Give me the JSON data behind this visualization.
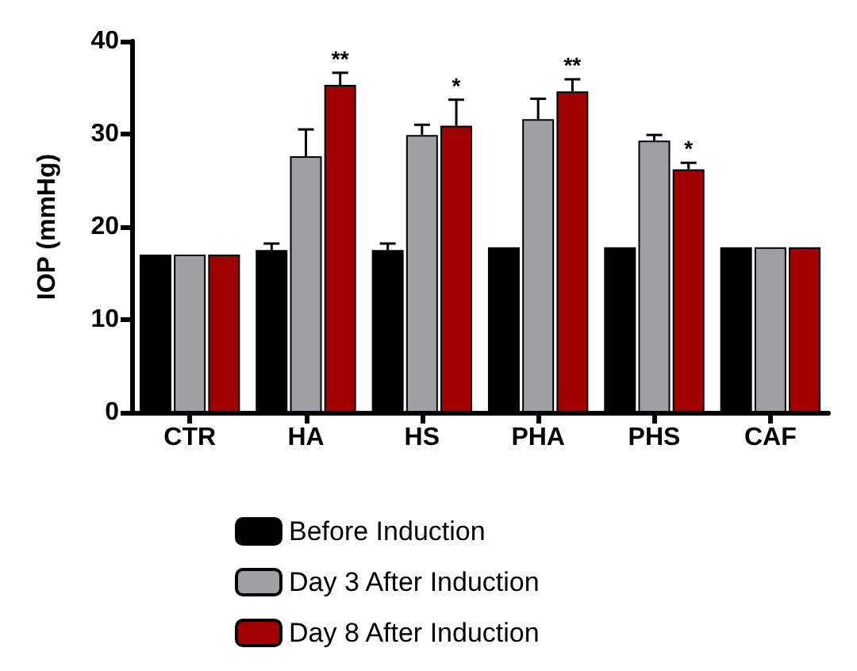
{
  "chart_data": {
    "type": "bar",
    "ylabel": "IOP (mmHg)",
    "categories": [
      "CTR",
      "HA",
      "HS",
      "PHA",
      "PHS",
      "CAF"
    ],
    "series": [
      {
        "name": "Before Induction",
        "color": "#000000",
        "values": [
          17,
          17.5,
          17.5,
          17.8,
          17.8,
          17.8
        ],
        "errors": [
          null,
          [
            17.5,
            18.2
          ],
          [
            17.5,
            18.2
          ],
          null,
          null,
          null
        ]
      },
      {
        "name": "Day 3 After Induction",
        "color": "#a0a0a4",
        "values": [
          17,
          27.6,
          29.9,
          31.6,
          29.3,
          17.8
        ],
        "errors": [
          null,
          [
            27.6,
            30.5
          ],
          [
            29.9,
            31
          ],
          [
            31.6,
            33.8
          ],
          [
            29.3,
            29.9
          ],
          null
        ]
      },
      {
        "name": "Day 8 After Induction",
        "color": "#a00000",
        "values": [
          17,
          35.3,
          30.9,
          34.6,
          26.2,
          17.8
        ],
        "errors": [
          null,
          [
            35.3,
            36.6
          ],
          [
            30.9,
            33.7
          ],
          [
            34.6,
            35.9
          ],
          [
            26.2,
            26.9
          ],
          null
        ],
        "value_labels": [
          null,
          "**",
          "*",
          "**",
          "*",
          null
        ]
      }
    ],
    "ylim": [
      0,
      40
    ],
    "yticks": [
      0,
      10,
      20,
      30,
      40
    ],
    "grid": false,
    "legend": "bottom"
  }
}
